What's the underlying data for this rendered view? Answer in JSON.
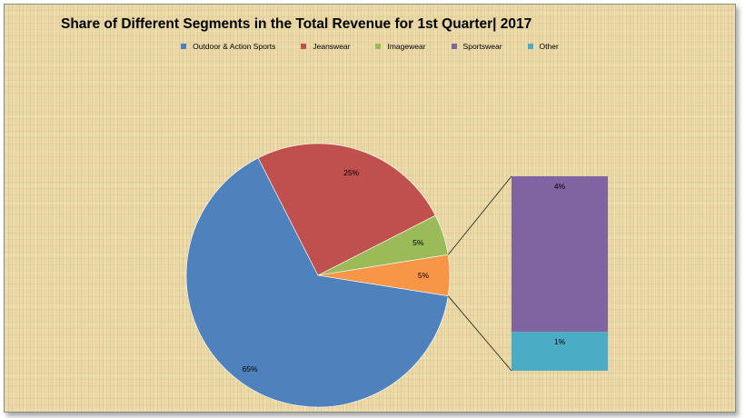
{
  "chart_data": {
    "type": "pie",
    "subtype": "bar-of-pie",
    "title": "Share of Different Segments in the Total Revenue for 1st Quarter| 2017",
    "legend_position": "top",
    "series": [
      {
        "name": "Outdoor & Action Sports",
        "value": 65,
        "label": "65%",
        "color": "#4f81bd"
      },
      {
        "name": "Jeanswear",
        "value": 25,
        "label": "25%",
        "color": "#c0504d"
      },
      {
        "name": "Imagewear",
        "value": 5,
        "label": "5%",
        "color": "#9bbb59"
      },
      {
        "name": "Sportswear",
        "value": 4,
        "label": "4%",
        "color": "#8064a2"
      },
      {
        "name": "Other",
        "value": 1,
        "label": "1%",
        "color": "#4bacc6"
      }
    ],
    "other_slice": {
      "value": 5,
      "label": "5%",
      "color": "#f79646"
    }
  }
}
